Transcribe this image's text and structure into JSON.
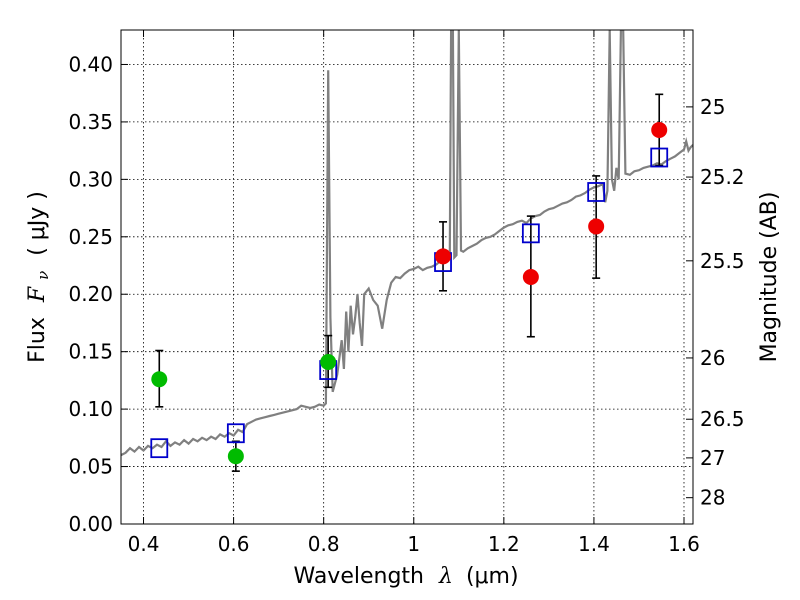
{
  "chart_data": {
    "type": "scatter",
    "xlabel_prefix": "Wavelength",
    "xlabel_symbol": "λ",
    "xlabel_unit": "(μm)",
    "ylabel_prefix": "Flux",
    "ylabel_symbol": "F",
    "ylabel_subscript": "ν",
    "ylabel_unit": "( μJy )",
    "y2label": "Magnitude (AB)",
    "xlim": [
      0.35,
      1.62
    ],
    "ylim": [
      0.0,
      0.43
    ],
    "grid": true,
    "xticks": [
      0.4,
      0.6,
      0.8,
      1.0,
      1.2,
      1.4,
      1.6
    ],
    "xtick_labels": [
      "0.4",
      "0.6",
      "0.8",
      "1",
      "1.2",
      "1.4",
      "1.6"
    ],
    "yticks": [
      0.0,
      0.05,
      0.1,
      0.15,
      0.2,
      0.25,
      0.3,
      0.35,
      0.4
    ],
    "ytick_labels": [
      "0.00",
      "0.05",
      "0.10",
      "0.15",
      "0.20",
      "0.25",
      "0.30",
      "0.35",
      "0.40"
    ],
    "y2ticks": [
      {
        "mag": 25.0,
        "label": "25"
      },
      {
        "mag": 25.2,
        "label": "25.2"
      },
      {
        "mag": 25.5,
        "label": "25.5"
      },
      {
        "mag": 26.0,
        "label": "26"
      },
      {
        "mag": 26.5,
        "label": "26.5"
      },
      {
        "mag": 27.0,
        "label": "27"
      },
      {
        "mag": 28.0,
        "label": "28"
      }
    ],
    "colors": {
      "spectrum": "#808080",
      "model": "#0000cc",
      "green": "#00bb00",
      "red": "#ee0000",
      "errorbar": "#000000"
    },
    "spectrum": [
      [
        0.35,
        0.06
      ],
      [
        0.36,
        0.062
      ],
      [
        0.37,
        0.066
      ],
      [
        0.38,
        0.063
      ],
      [
        0.39,
        0.067
      ],
      [
        0.4,
        0.064
      ],
      [
        0.41,
        0.068
      ],
      [
        0.42,
        0.066
      ],
      [
        0.43,
        0.069
      ],
      [
        0.44,
        0.067
      ],
      [
        0.45,
        0.072
      ],
      [
        0.46,
        0.068
      ],
      [
        0.47,
        0.071
      ],
      [
        0.48,
        0.069
      ],
      [
        0.49,
        0.073
      ],
      [
        0.5,
        0.07
      ],
      [
        0.51,
        0.074
      ],
      [
        0.52,
        0.072
      ],
      [
        0.53,
        0.075
      ],
      [
        0.54,
        0.073
      ],
      [
        0.55,
        0.076
      ],
      [
        0.56,
        0.074
      ],
      [
        0.57,
        0.078
      ],
      [
        0.58,
        0.076
      ],
      [
        0.59,
        0.079
      ],
      [
        0.6,
        0.077
      ],
      [
        0.61,
        0.082
      ],
      [
        0.62,
        0.08
      ],
      [
        0.63,
        0.087
      ],
      [
        0.64,
        0.089
      ],
      [
        0.65,
        0.091
      ],
      [
        0.66,
        0.092
      ],
      [
        0.67,
        0.093
      ],
      [
        0.68,
        0.094
      ],
      [
        0.69,
        0.095
      ],
      [
        0.7,
        0.096
      ],
      [
        0.71,
        0.097
      ],
      [
        0.72,
        0.098
      ],
      [
        0.73,
        0.099
      ],
      [
        0.74,
        0.1
      ],
      [
        0.75,
        0.103
      ],
      [
        0.76,
        0.102
      ],
      [
        0.77,
        0.101
      ],
      [
        0.78,
        0.102
      ],
      [
        0.79,
        0.104
      ],
      [
        0.8,
        0.103
      ],
      [
        0.805,
        0.105
      ],
      [
        0.81,
        0.395
      ],
      [
        0.815,
        0.18
      ],
      [
        0.82,
        0.115
      ],
      [
        0.83,
        0.13
      ],
      [
        0.84,
        0.16
      ],
      [
        0.845,
        0.135
      ],
      [
        0.85,
        0.185
      ],
      [
        0.855,
        0.15
      ],
      [
        0.86,
        0.19
      ],
      [
        0.865,
        0.165
      ],
      [
        0.87,
        0.18
      ],
      [
        0.875,
        0.2
      ],
      [
        0.88,
        0.175
      ],
      [
        0.885,
        0.155
      ],
      [
        0.89,
        0.2
      ],
      [
        0.9,
        0.205
      ],
      [
        0.91,
        0.195
      ],
      [
        0.92,
        0.19
      ],
      [
        0.93,
        0.17
      ],
      [
        0.94,
        0.195
      ],
      [
        0.95,
        0.21
      ],
      [
        0.96,
        0.215
      ],
      [
        0.97,
        0.214
      ],
      [
        0.98,
        0.218
      ],
      [
        0.99,
        0.221
      ],
      [
        1.0,
        0.222
      ],
      [
        1.01,
        0.224
      ],
      [
        1.02,
        0.221
      ],
      [
        1.03,
        0.223
      ],
      [
        1.04,
        0.224
      ],
      [
        1.05,
        0.226
      ],
      [
        1.06,
        0.229
      ],
      [
        1.07,
        0.228
      ],
      [
        1.075,
        0.232
      ],
      [
        1.08,
        0.236
      ],
      [
        1.083,
        0.43
      ],
      [
        1.087,
        0.43
      ],
      [
        1.09,
        0.232
      ],
      [
        1.095,
        0.234
      ],
      [
        1.1,
        0.43
      ],
      [
        1.105,
        0.238
      ],
      [
        1.11,
        0.237
      ],
      [
        1.12,
        0.24
      ],
      [
        1.13,
        0.242
      ],
      [
        1.14,
        0.244
      ],
      [
        1.15,
        0.247
      ],
      [
        1.16,
        0.249
      ],
      [
        1.17,
        0.25
      ],
      [
        1.18,
        0.252
      ],
      [
        1.19,
        0.255
      ],
      [
        1.2,
        0.258
      ],
      [
        1.21,
        0.26
      ],
      [
        1.22,
        0.261
      ],
      [
        1.23,
        0.263
      ],
      [
        1.24,
        0.264
      ],
      [
        1.25,
        0.262
      ],
      [
        1.26,
        0.266
      ],
      [
        1.27,
        0.268
      ],
      [
        1.28,
        0.269
      ],
      [
        1.29,
        0.272
      ],
      [
        1.3,
        0.274
      ],
      [
        1.31,
        0.275
      ],
      [
        1.32,
        0.277
      ],
      [
        1.33,
        0.279
      ],
      [
        1.34,
        0.28
      ],
      [
        1.35,
        0.282
      ],
      [
        1.36,
        0.285
      ],
      [
        1.37,
        0.286
      ],
      [
        1.38,
        0.288
      ],
      [
        1.39,
        0.291
      ],
      [
        1.4,
        0.293
      ],
      [
        1.41,
        0.294
      ],
      [
        1.42,
        0.296
      ],
      [
        1.425,
        0.28
      ],
      [
        1.43,
        0.29
      ],
      [
        1.435,
        0.43
      ],
      [
        1.44,
        0.3
      ],
      [
        1.445,
        0.29
      ],
      [
        1.45,
        0.31
      ],
      [
        1.455,
        0.3
      ],
      [
        1.46,
        0.43
      ],
      [
        1.465,
        0.43
      ],
      [
        1.47,
        0.305
      ],
      [
        1.48,
        0.304
      ],
      [
        1.49,
        0.307
      ],
      [
        1.5,
        0.308
      ],
      [
        1.51,
        0.31
      ],
      [
        1.52,
        0.311
      ],
      [
        1.53,
        0.312
      ],
      [
        1.54,
        0.314
      ],
      [
        1.55,
        0.313
      ],
      [
        1.56,
        0.316
      ],
      [
        1.57,
        0.318
      ],
      [
        1.58,
        0.32
      ],
      [
        1.59,
        0.323
      ],
      [
        1.6,
        0.326
      ],
      [
        1.605,
        0.333
      ],
      [
        1.61,
        0.325
      ],
      [
        1.615,
        0.328
      ],
      [
        1.62,
        0.33
      ]
    ],
    "model_points": [
      {
        "x": 0.435,
        "y": 0.066
      },
      {
        "x": 0.605,
        "y": 0.079
      },
      {
        "x": 0.81,
        "y": 0.134
      },
      {
        "x": 1.065,
        "y": 0.228
      },
      {
        "x": 1.26,
        "y": 0.253
      },
      {
        "x": 1.405,
        "y": 0.289
      },
      {
        "x": 1.545,
        "y": 0.319
      }
    ],
    "observed_points": [
      {
        "x": 0.435,
        "y": 0.126,
        "err_lo": 0.024,
        "err_hi": 0.025,
        "color": "green"
      },
      {
        "x": 0.605,
        "y": 0.059,
        "err_lo": 0.013,
        "err_hi": 0.013,
        "color": "green"
      },
      {
        "x": 0.81,
        "y": 0.141,
        "err_lo": 0.022,
        "err_hi": 0.023,
        "color": "green"
      },
      {
        "x": 1.065,
        "y": 0.233,
        "err_lo": 0.03,
        "err_hi": 0.03,
        "color": "red"
      },
      {
        "x": 1.26,
        "y": 0.215,
        "err_lo": 0.052,
        "err_hi": 0.053,
        "color": "red"
      },
      {
        "x": 1.405,
        "y": 0.259,
        "err_lo": 0.045,
        "err_hi": 0.044,
        "color": "red"
      },
      {
        "x": 1.545,
        "y": 0.343,
        "err_lo": 0.031,
        "err_hi": 0.031,
        "color": "red"
      }
    ]
  }
}
